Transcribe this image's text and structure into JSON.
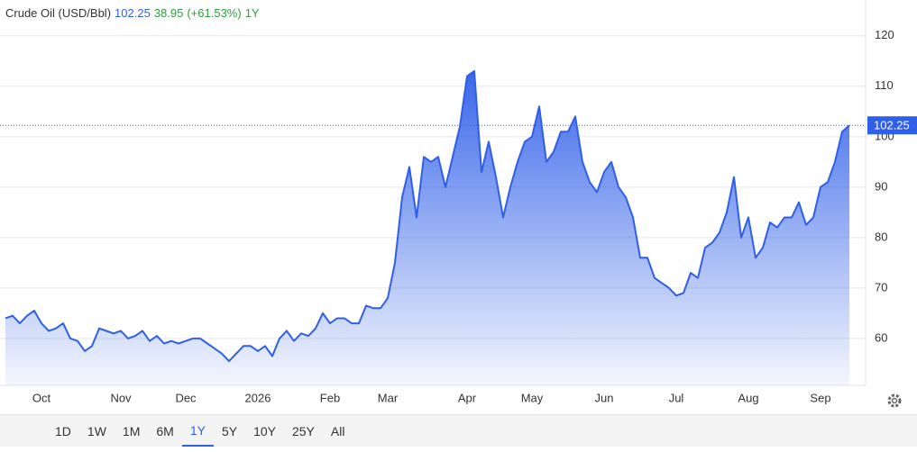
{
  "chart_data": {
    "type": "area",
    "title": "Crude Oil (USD/Bbl)",
    "change": "38.95",
    "change_pct": "(+61.53%)",
    "period": "1Y",
    "ranges": [
      "1D",
      "1W",
      "1M",
      "6M",
      "1Y",
      "5Y",
      "10Y",
      "25Y",
      "All"
    ],
    "color": "#2f5fe8",
    "grid": true,
    "categories": [
      null,
      null,
      null,
      null,
      null,
      "Oct",
      null,
      null,
      null,
      null,
      null,
      null,
      null,
      null,
      null,
      null,
      "Nov",
      null,
      null,
      null,
      null,
      null,
      null,
      null,
      null,
      "Dec",
      null,
      null,
      null,
      null,
      null,
      null,
      null,
      null,
      null,
      "2026",
      null,
      null,
      null,
      null,
      null,
      null,
      null,
      null,
      null,
      "Feb",
      null,
      null,
      null,
      null,
      null,
      null,
      null,
      "Mar",
      null,
      null,
      null,
      null,
      null,
      null,
      null,
      null,
      null,
      null,
      "Apr",
      null,
      null,
      null,
      null,
      null,
      null,
      null,
      null,
      "May",
      null,
      null,
      null,
      null,
      null,
      null,
      null,
      null,
      null,
      "Jun",
      null,
      null,
      null,
      null,
      null,
      null,
      null,
      null,
      null,
      "Jul",
      null,
      null,
      null,
      null,
      null,
      null,
      null,
      null,
      null,
      "Aug",
      null,
      null,
      null,
      null,
      null,
      null,
      null,
      null,
      null,
      "Sep",
      null,
      null,
      null,
      null
    ],
    "values": [
      64,
      64.5,
      63,
      64.5,
      65.5,
      63,
      61.5,
      62,
      63,
      60,
      59.5,
      57.5,
      58.5,
      62,
      61.5,
      61,
      61.5,
      60,
      60.5,
      61.5,
      59.5,
      60.5,
      59,
      59.5,
      59,
      59.5,
      60,
      60,
      59,
      58,
      57,
      55.5,
      57,
      58.5,
      58.5,
      57.5,
      58.5,
      56.5,
      60,
      61.5,
      59.5,
      61,
      60.5,
      62,
      65,
      63,
      64,
      64,
      63,
      63,
      66.5,
      66,
      66,
      68,
      75,
      88,
      94,
      84,
      96,
      95,
      96,
      90,
      96,
      102,
      112,
      113,
      93,
      99,
      92,
      84,
      90,
      95,
      99,
      100,
      106,
      95,
      97,
      101,
      101,
      104,
      95,
      91,
      89,
      93,
      95,
      90,
      88,
      84,
      76,
      76,
      72,
      71,
      70,
      68.5,
      69,
      73,
      72,
      78,
      79,
      81,
      85,
      92,
      80,
      84,
      76,
      78,
      83,
      82,
      84,
      84,
      87,
      82.5,
      84,
      90,
      91,
      95,
      101,
      102.25
    ],
    "ylim": [
      50.7,
      127.1
    ],
    "yticks": [
      60,
      70,
      80,
      90,
      100,
      110,
      120
    ]
  }
}
